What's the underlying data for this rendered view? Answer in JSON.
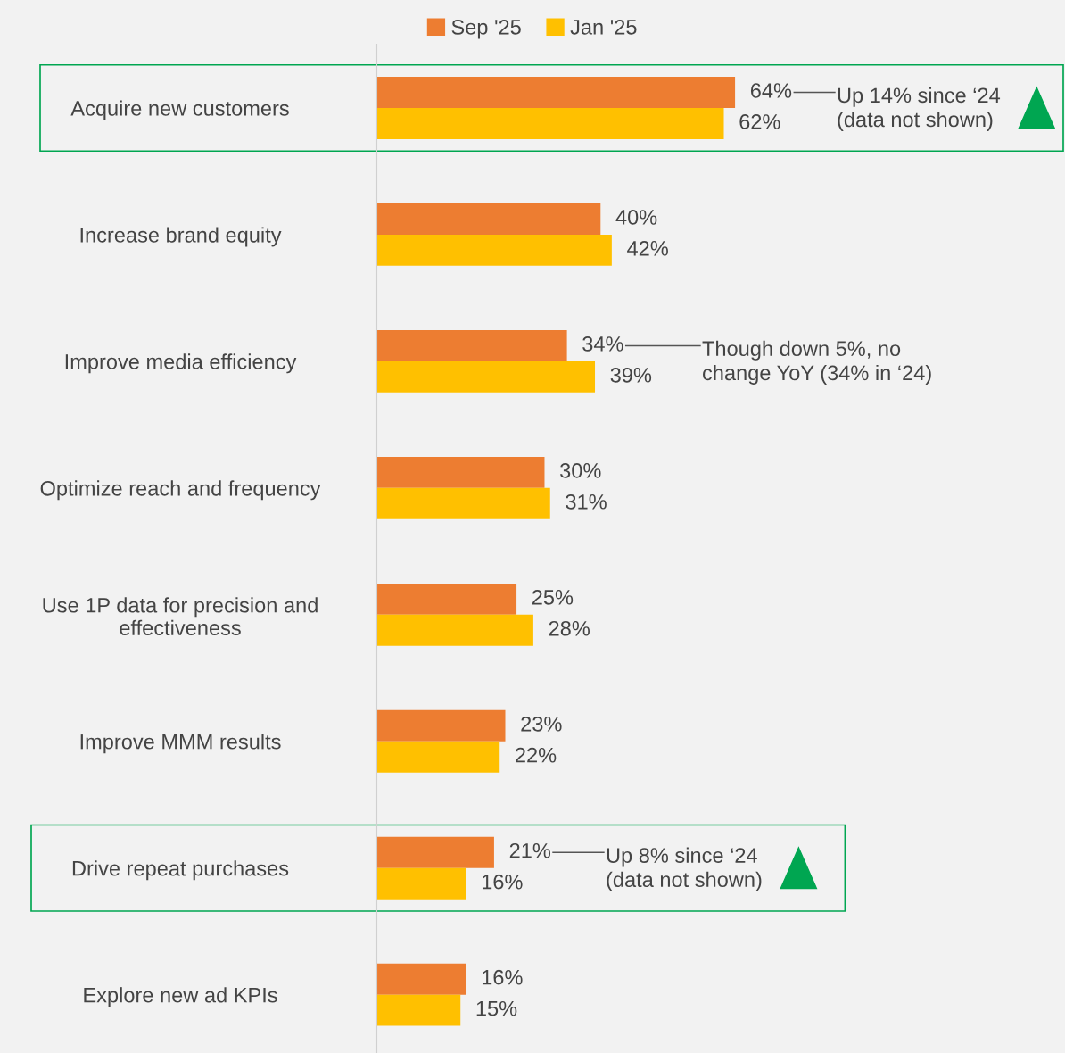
{
  "chart_data": {
    "type": "bar",
    "orientation": "horizontal",
    "categories": [
      "Acquire new customers",
      "Increase brand equity",
      "Improve media efficiency",
      "Optimize reach and frequency",
      "Use 1P data for precision and\neffectiveness",
      "Improve MMM results",
      "Drive repeat purchases",
      "Explore new ad KPIs"
    ],
    "series": [
      {
        "name": "Sep '25",
        "color": "#ed7d31",
        "values": [
          64,
          40,
          34,
          30,
          25,
          23,
          21,
          16
        ],
        "value_labels": [
          "64%",
          "40%",
          "34%",
          "30%",
          "25%",
          "23%",
          "21%",
          "16%"
        ]
      },
      {
        "name": "Jan '25",
        "color": "#ffc000",
        "values": [
          62,
          42,
          39,
          31,
          28,
          22,
          16,
          15
        ],
        "value_labels": [
          "62%",
          "42%",
          "39%",
          "31%",
          "28%",
          "22%",
          "16%",
          "15%"
        ]
      }
    ],
    "annotations": [
      "Up 14% since ‘24\n(data not shown)",
      "Though down 5%, no\nchange YoY (34% in ‘24)",
      "Up 8% since ‘24\n(data not shown)"
    ],
    "legend": "top",
    "grid": false
  }
}
